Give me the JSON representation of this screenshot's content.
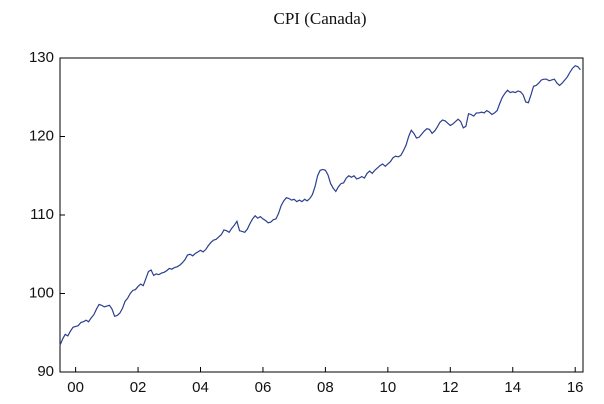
{
  "chart_data": {
    "type": "line",
    "title": "CPI (Canada)",
    "series": [
      {
        "name": "CPI",
        "color": "#2b3f8f",
        "values": [
          93.4,
          94.2,
          94.8,
          94.6,
          95.2,
          95.7,
          95.8,
          95.9,
          96.3,
          96.4,
          96.6,
          96.4,
          96.9,
          97.3,
          98.0,
          98.6,
          98.5,
          98.3,
          98.4,
          98.5,
          98.0,
          97.1,
          97.2,
          97.5,
          98.1,
          99.0,
          99.4,
          100.0,
          100.4,
          100.5,
          100.9,
          101.2,
          101.0,
          101.9,
          102.8,
          103.0,
          102.3,
          102.5,
          102.4,
          102.6,
          102.7,
          102.9,
          103.2,
          103.1,
          103.3,
          103.4,
          103.6,
          103.9,
          104.3,
          104.9,
          105.0,
          104.8,
          105.1,
          105.3,
          105.5,
          105.3,
          105.6,
          106.1,
          106.5,
          106.8,
          106.9,
          107.2,
          107.5,
          108.1,
          108.0,
          107.8,
          108.3,
          108.7,
          109.2,
          108.0,
          107.9,
          107.8,
          108.2,
          108.9,
          109.5,
          109.9,
          109.6,
          109.8,
          109.5,
          109.3,
          109.0,
          109.1,
          109.4,
          109.5,
          110.2,
          111.2,
          111.8,
          112.2,
          112.1,
          111.9,
          112.0,
          111.7,
          111.9,
          111.7,
          112.0,
          111.8,
          112.1,
          112.6,
          113.6,
          115.0,
          115.7,
          115.8,
          115.7,
          115.1,
          114.0,
          113.4,
          113.0,
          113.6,
          114.0,
          114.1,
          114.7,
          115.0,
          114.8,
          115.0,
          114.6,
          114.7,
          114.9,
          114.7,
          115.3,
          115.6,
          115.3,
          115.7,
          116.0,
          116.3,
          116.5,
          116.2,
          116.5,
          116.8,
          117.3,
          117.5,
          117.4,
          117.6,
          118.2,
          118.9,
          120.0,
          120.8,
          120.4,
          119.8,
          119.9,
          120.3,
          120.7,
          121.0,
          120.9,
          120.4,
          120.7,
          121.2,
          121.8,
          122.1,
          122.0,
          121.7,
          121.4,
          121.6,
          121.9,
          122.2,
          121.9,
          121.1,
          121.3,
          122.9,
          122.8,
          122.6,
          123.0,
          123.0,
          123.1,
          123.0,
          123.3,
          123.1,
          122.8,
          123.0,
          123.3,
          124.2,
          125.0,
          125.5,
          125.9,
          125.6,
          125.7,
          125.6,
          125.8,
          125.7,
          125.3,
          124.4,
          124.3,
          125.3,
          126.4,
          126.5,
          126.8,
          127.2,
          127.3,
          127.3,
          127.1,
          127.2,
          127.3,
          126.8,
          126.5,
          126.8,
          127.2,
          127.6,
          128.2,
          128.7,
          129.0,
          128.9,
          128.5
        ]
      }
    ],
    "xlim": [
      0,
      201
    ],
    "xticks": [
      {
        "value": 6,
        "label": "00"
      },
      {
        "value": 30,
        "label": "02"
      },
      {
        "value": 54,
        "label": "04"
      },
      {
        "value": 78,
        "label": "06"
      },
      {
        "value": 102,
        "label": "08"
      },
      {
        "value": 126,
        "label": "10"
      },
      {
        "value": 150,
        "label": "12"
      },
      {
        "value": 174,
        "label": "14"
      },
      {
        "value": 198,
        "label": "16"
      }
    ],
    "ylim": [
      90,
      130
    ],
    "yticks": [
      90,
      100,
      110,
      120,
      130
    ],
    "grid": false
  }
}
